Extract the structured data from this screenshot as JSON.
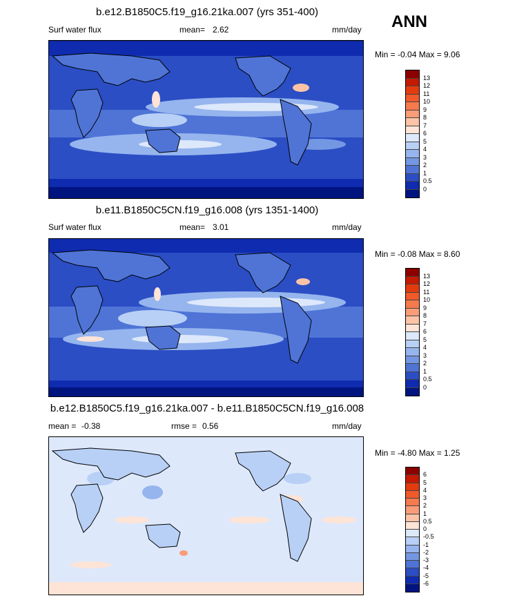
{
  "season": "ANN",
  "panels": [
    {
      "title": "b.e12.B1850C5.f19_g16.21ka.007 (yrs 351-400)",
      "left_label": "Surf water flux",
      "stat_label": "mean=",
      "stat_value": "2.62",
      "stat2_label": "",
      "stat2_value": "",
      "units": "mm/day",
      "minmax": "Min =  -0.04 Max =   9.06",
      "colorbar": {
        "labels": [
          "13",
          "12",
          "11",
          "10",
          "9",
          "8",
          "7",
          "6",
          "5",
          "4",
          "3",
          "2",
          "1",
          "0.5",
          "0"
        ],
        "colors": [
          "#8c0000",
          "#c41a00",
          "#e43b0e",
          "#f05a2a",
          "#f57a4d",
          "#f99d78",
          "#fcc3a6",
          "#fde4d6",
          "#dde8fb",
          "#b8d0f5",
          "#96b5ee",
          "#7497e3",
          "#4f74d6",
          "#2b4ec5",
          "#0f2cb0",
          "#001480"
        ]
      },
      "mean": 2.62,
      "min": -0.04,
      "max": 9.06
    },
    {
      "title": "b.e11.B1850C5CN.f19_g16.008 (yrs 1351-1400)",
      "left_label": "Surf water flux",
      "stat_label": "mean=",
      "stat_value": "3.01",
      "stat2_label": "",
      "stat2_value": "",
      "units": "mm/day",
      "minmax": "Min =  -0.08 Max =   8.60",
      "colorbar": {
        "labels": [
          "13",
          "12",
          "11",
          "10",
          "9",
          "8",
          "7",
          "6",
          "5",
          "4",
          "3",
          "2",
          "1",
          "0.5",
          "0"
        ],
        "colors": [
          "#8c0000",
          "#c41a00",
          "#e43b0e",
          "#f05a2a",
          "#f57a4d",
          "#f99d78",
          "#fcc3a6",
          "#fde4d6",
          "#dde8fb",
          "#b8d0f5",
          "#96b5ee",
          "#7497e3",
          "#4f74d6",
          "#2b4ec5",
          "#0f2cb0",
          "#001480"
        ]
      },
      "mean": 3.01,
      "min": -0.08,
      "max": 8.6
    },
    {
      "title": "b.e12.B1850C5.f19_g16.21ka.007 - b.e11.B1850C5CN.f19_g16.008",
      "left_label": "",
      "stat_label": "mean =",
      "stat_value": "-0.38",
      "stat2_label": "rmse =",
      "stat2_value": "0.56",
      "units": "mm/day",
      "minmax": "Min =  -4.80 Max =   1.25",
      "colorbar": {
        "labels": [
          "6",
          "5",
          "4",
          "3",
          "2",
          "1",
          "0.5",
          "0",
          "-0.5",
          "-1",
          "-2",
          "-3",
          "-4",
          "-5",
          "-6"
        ],
        "colors": [
          "#8c0000",
          "#c41a00",
          "#e43b0e",
          "#f05a2a",
          "#f57a4d",
          "#f99d78",
          "#fcc3a6",
          "#fde4d6",
          "#dde8fb",
          "#b8d0f5",
          "#96b5ee",
          "#7497e3",
          "#4f74d6",
          "#2b4ec5",
          "#0f2cb0",
          "#001480"
        ]
      },
      "mean": -0.38,
      "min": -4.8,
      "max": 1.25
    }
  ]
}
